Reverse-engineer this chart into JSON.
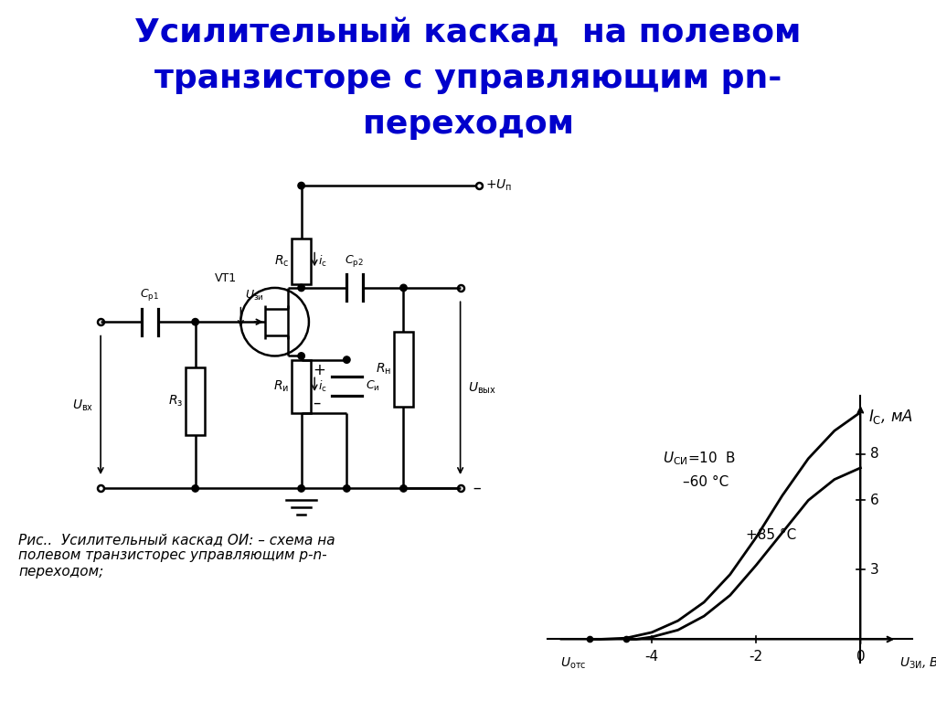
{
  "title_line1": "Усилительный каскад  на полевом",
  "title_line2": "транзисторе с управляющим рn-",
  "title_line3": "переходом",
  "title_color": "#0000CC",
  "title_fontsize": 26,
  "bg_color": "#FFFFFF",
  "caption": "Рис..  Усилительный каскад ОИ: – схема на\nполевом транзисторес управляющим р-n-\nпереходом;",
  "yticks": [
    3,
    6,
    8
  ],
  "xticks": [
    -4,
    -2,
    0
  ],
  "curve1_x": [
    -5.2,
    -5.0,
    -4.5,
    -4.0,
    -3.5,
    -3.0,
    -2.5,
    -2.0,
    -1.5,
    -1.0,
    -0.5,
    0.0
  ],
  "curve1_y": [
    0.0,
    0.0,
    0.05,
    0.3,
    0.8,
    1.6,
    2.8,
    4.4,
    6.2,
    7.8,
    9.0,
    9.8
  ],
  "curve2_x": [
    -4.5,
    -4.3,
    -4.0,
    -3.5,
    -3.0,
    -2.5,
    -2.0,
    -1.5,
    -1.0,
    -0.5,
    0.0
  ],
  "curve2_y": [
    0.0,
    0.0,
    0.1,
    0.4,
    1.0,
    1.9,
    3.2,
    4.6,
    6.0,
    6.9,
    7.4
  ]
}
